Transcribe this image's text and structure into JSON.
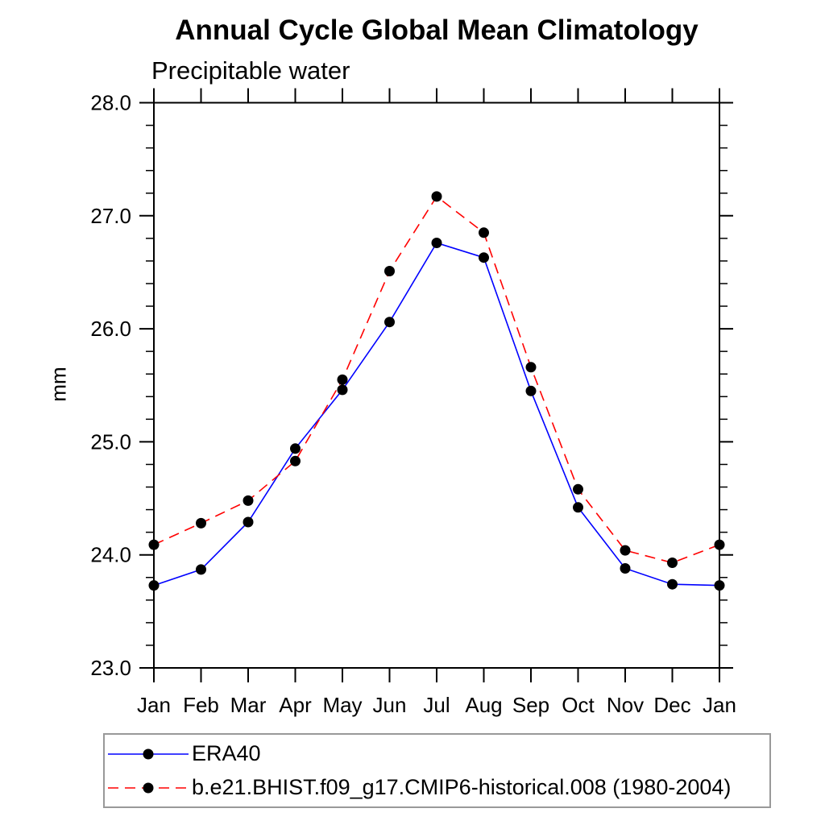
{
  "header": {
    "title": "Annual Cycle Global Mean Climatology",
    "subtitle": "Precipitable water"
  },
  "chart_data": {
    "type": "line",
    "title": "Annual Cycle Global Mean Climatology",
    "subtitle": "Precipitable water",
    "xlabel": "",
    "ylabel": "mm",
    "categories": [
      "Jan",
      "Feb",
      "Mar",
      "Apr",
      "May",
      "Jun",
      "Jul",
      "Aug",
      "Sep",
      "Oct",
      "Nov",
      "Dec",
      "Jan"
    ],
    "ylim": [
      23.0,
      28.0
    ],
    "ytick_major": [
      23.0,
      24.0,
      25.0,
      26.0,
      27.0,
      28.0
    ],
    "ytick_labels": [
      "23.0",
      "24.0",
      "25.0",
      "26.0",
      "27.0",
      "28.0"
    ],
    "ytick_minor_step": 0.2,
    "grid": false,
    "legend_position": "bottom-left",
    "axis_color": "#000000",
    "marker": "circle",
    "marker_color": "#000000",
    "series": [
      {
        "name": "ERA40",
        "color": "#0000ff",
        "line_style": "solid",
        "values": [
          23.73,
          23.87,
          24.29,
          24.94,
          25.46,
          26.06,
          26.76,
          26.63,
          25.45,
          24.42,
          23.88,
          23.74,
          23.73
        ]
      },
      {
        "name": "b.e21.BHIST.f09_g17.CMIP6-historical.008 (1980-2004)",
        "color": "#ff0000",
        "line_style": "dashed",
        "values": [
          24.09,
          24.28,
          24.48,
          24.83,
          25.55,
          26.51,
          27.17,
          26.85,
          25.66,
          24.58,
          24.04,
          23.93,
          24.09
        ]
      }
    ]
  }
}
